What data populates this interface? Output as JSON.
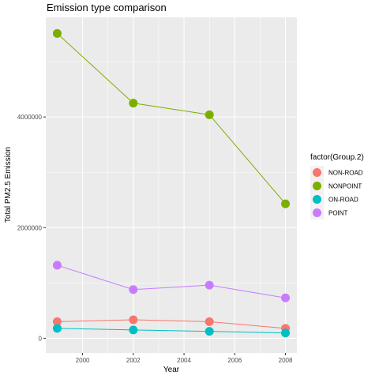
{
  "chart_data": {
    "type": "line",
    "title": "Emission type comparison",
    "xlabel": "Year",
    "ylabel": "Total PM2.5 Emission",
    "x": [
      1999,
      2002,
      2005,
      2008
    ],
    "xticks": [
      2000,
      2002,
      2004,
      2006,
      2008
    ],
    "yticks": [
      0,
      2000000,
      4000000
    ],
    "ytick_labels": [
      "0",
      "2000000",
      "4000000"
    ],
    "xlim": [
      1998.55,
      2008.45
    ],
    "ylim": [
      -265000,
      5800000
    ],
    "grid": true,
    "legend": {
      "title": "factor(Group.2)",
      "placement": "right"
    },
    "series": [
      {
        "name": "NON-ROAD",
        "color": "#F8766D",
        "values": [
          300000,
          335000,
          300000,
          180000
        ]
      },
      {
        "name": "NONPOINT",
        "color": "#7CAE00",
        "values": [
          5510000,
          4250000,
          4040000,
          2430000
        ]
      },
      {
        "name": "ON-ROAD",
        "color": "#00BFC4",
        "values": [
          180000,
          150000,
          125000,
          95000
        ]
      },
      {
        "name": "POINT",
        "color": "#C77CFF",
        "values": [
          1320000,
          880000,
          960000,
          730000
        ]
      }
    ]
  }
}
